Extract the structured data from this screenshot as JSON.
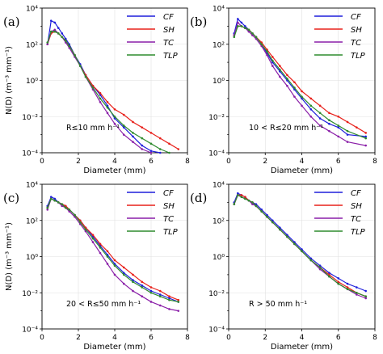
{
  "chart_data": [
    {
      "type": "line",
      "panel_label": "(a)",
      "annotation": "R≤10 mm h⁻¹",
      "xlabel": "Diameter (mm)",
      "ylabel": "N(D) (m⁻³ mm⁻¹)",
      "xlim": [
        0,
        8
      ],
      "xticks": [
        0,
        2,
        4,
        6,
        8
      ],
      "ylim_log10": [
        -4,
        4
      ],
      "yticks": [
        "10⁻⁴",
        "10⁻²",
        "10⁰",
        "10²",
        "10⁴"
      ],
      "yscale": "log",
      "grid": true,
      "legend": "top-right",
      "series": [
        {
          "name": "CF",
          "color": "#1f1fdc",
          "x": [
            0.3,
            0.5,
            0.7,
            0.9,
            1.1,
            1.3,
            1.5,
            1.8,
            2.1,
            2.4,
            2.8,
            3.2,
            3.6,
            4.0,
            4.5,
            5.0,
            5.5,
            6.0,
            6.5
          ],
          "y": [
            2.0,
            3.3,
            3.2,
            2.9,
            2.6,
            2.3,
            2.0,
            1.4,
            0.9,
            0.3,
            -0.3,
            -0.8,
            -1.4,
            -2.1,
            -2.6,
            -3.1,
            -3.6,
            -3.9,
            -4.0
          ]
        },
        {
          "name": "SH",
          "color": "#e8201a",
          "x": [
            0.3,
            0.5,
            0.7,
            0.9,
            1.1,
            1.3,
            1.5,
            1.8,
            2.1,
            2.4,
            2.8,
            3.2,
            3.6,
            4.0,
            4.5,
            5.0,
            5.5,
            6.0,
            6.5,
            7.0,
            7.5
          ],
          "y": [
            2.0,
            2.6,
            2.7,
            2.6,
            2.4,
            2.2,
            1.9,
            1.4,
            0.8,
            0.3,
            -0.3,
            -0.7,
            -1.2,
            -1.6,
            -1.9,
            -2.3,
            -2.6,
            -2.9,
            -3.2,
            -3.5,
            -3.8
          ]
        },
        {
          "name": "TC",
          "color": "#8a1fa8",
          "x": [
            0.3,
            0.5,
            0.7,
            0.9,
            1.1,
            1.3,
            1.5,
            1.8,
            2.1,
            2.4,
            2.8,
            3.2,
            3.6,
            4.0,
            4.5,
            5.0,
            5.5,
            6.0
          ],
          "y": [
            2.0,
            2.7,
            2.8,
            2.6,
            2.4,
            2.1,
            1.8,
            1.3,
            0.8,
            0.2,
            -0.5,
            -1.2,
            -1.8,
            -2.4,
            -3.0,
            -3.4,
            -3.8,
            -4.0
          ]
        },
        {
          "name": "TLP",
          "color": "#2e8b2e",
          "x": [
            0.3,
            0.5,
            0.7,
            0.9,
            1.1,
            1.3,
            1.5,
            1.8,
            2.1,
            2.4,
            2.8,
            3.2,
            3.6,
            4.0,
            4.5,
            5.0,
            5.5,
            6.0,
            6.5,
            7.0
          ],
          "y": [
            2.1,
            2.7,
            2.7,
            2.6,
            2.4,
            2.2,
            1.9,
            1.4,
            0.8,
            0.2,
            -0.4,
            -1.0,
            -1.5,
            -2.0,
            -2.5,
            -2.9,
            -3.2,
            -3.5,
            -3.8,
            -4.0
          ]
        }
      ]
    },
    {
      "type": "line",
      "panel_label": "(b)",
      "annotation": "10 < R≤20 mm h⁻¹",
      "xlabel": "Diameter (mm)",
      "ylabel": "",
      "xlim": [
        0,
        8
      ],
      "xticks": [
        0,
        2,
        4,
        6,
        8
      ],
      "ylim_log10": [
        -4,
        4
      ],
      "yticks": [
        "10⁻⁴",
        "10⁻²",
        "10⁰",
        "10²",
        "10⁴"
      ],
      "yscale": "log",
      "grid": true,
      "legend": "top-right",
      "series": [
        {
          "name": "CF",
          "color": "#1f1fdc",
          "x": [
            0.3,
            0.5,
            0.7,
            0.9,
            1.1,
            1.3,
            1.5,
            1.8,
            2.1,
            2.4,
            2.8,
            3.2,
            3.6,
            4.0,
            4.5,
            5.0,
            5.5,
            6.0,
            6.5,
            7.5
          ],
          "y": [
            2.6,
            3.4,
            3.2,
            3.0,
            2.8,
            2.6,
            2.4,
            2.0,
            1.5,
            1.0,
            0.5,
            0.0,
            -0.5,
            -1.0,
            -1.6,
            -2.1,
            -2.4,
            -2.6,
            -3.0,
            -3.1
          ]
        },
        {
          "name": "SH",
          "color": "#e8201a",
          "x": [
            0.3,
            0.5,
            0.7,
            0.9,
            1.1,
            1.3,
            1.5,
            1.8,
            2.1,
            2.4,
            2.8,
            3.2,
            3.6,
            4.0,
            4.5,
            5.0,
            5.5,
            6.0,
            6.5,
            7.0,
            7.5
          ],
          "y": [
            2.5,
            3.0,
            3.0,
            2.9,
            2.8,
            2.6,
            2.4,
            2.1,
            1.7,
            1.3,
            0.8,
            0.3,
            -0.1,
            -0.6,
            -1.0,
            -1.4,
            -1.8,
            -2.0,
            -2.3,
            -2.6,
            -2.9
          ]
        },
        {
          "name": "TC",
          "color": "#8a1fa8",
          "x": [
            0.3,
            0.5,
            0.7,
            0.9,
            1.1,
            1.3,
            1.5,
            1.8,
            2.1,
            2.4,
            2.8,
            3.2,
            3.6,
            4.0,
            4.5,
            5.0,
            5.5,
            6.0,
            6.5,
            7.5
          ],
          "y": [
            2.5,
            3.2,
            3.0,
            2.9,
            2.7,
            2.5,
            2.3,
            1.9,
            1.4,
            0.8,
            0.2,
            -0.3,
            -0.9,
            -1.4,
            -2.0,
            -2.5,
            -2.8,
            -3.1,
            -3.4,
            -3.6
          ]
        },
        {
          "name": "TLP",
          "color": "#2e8b2e",
          "x": [
            0.3,
            0.5,
            0.7,
            0.9,
            1.1,
            1.3,
            1.5,
            1.8,
            2.1,
            2.4,
            2.8,
            3.2,
            3.6,
            4.0,
            4.5,
            5.0,
            5.5,
            6.0,
            6.5,
            7.5
          ],
          "y": [
            2.4,
            3.0,
            3.0,
            2.9,
            2.8,
            2.6,
            2.4,
            2.0,
            1.6,
            1.1,
            0.6,
            0.1,
            -0.4,
            -0.9,
            -1.4,
            -1.8,
            -2.2,
            -2.5,
            -2.8,
            -3.2
          ]
        }
      ]
    },
    {
      "type": "line",
      "panel_label": "(c)",
      "annotation": "20 < R≤50 mm h⁻¹",
      "xlabel": "Diameter (mm)",
      "ylabel": "N(D) (m⁻³ mm⁻¹)",
      "xlim": [
        0,
        8
      ],
      "xticks": [
        0,
        2,
        4,
        6,
        8
      ],
      "ylim_log10": [
        -4,
        4
      ],
      "yticks": [
        "10⁻⁴",
        "10⁻²",
        "10⁰",
        "10²",
        "10⁴"
      ],
      "yscale": "log",
      "grid": true,
      "legend": "top-right",
      "series": [
        {
          "name": "CF",
          "color": "#1f1fdc",
          "x": [
            0.3,
            0.5,
            0.7,
            0.9,
            1.1,
            1.3,
            1.5,
            1.8,
            2.1,
            2.4,
            2.8,
            3.2,
            3.6,
            4.0,
            4.5,
            5.0,
            5.5,
            6.0,
            6.5,
            7.0,
            7.5
          ],
          "y": [
            2.8,
            3.3,
            3.2,
            3.0,
            2.9,
            2.8,
            2.6,
            2.3,
            2.0,
            1.6,
            1.1,
            0.6,
            0.1,
            -0.4,
            -0.9,
            -1.3,
            -1.6,
            -1.9,
            -2.1,
            -2.3,
            -2.5
          ]
        },
        {
          "name": "SH",
          "color": "#e8201a",
          "x": [
            0.3,
            0.5,
            0.7,
            0.9,
            1.1,
            1.3,
            1.5,
            1.8,
            2.1,
            2.4,
            2.8,
            3.2,
            3.6,
            4.0,
            4.5,
            5.0,
            5.5,
            6.0,
            6.5,
            7.0,
            7.5
          ],
          "y": [
            2.7,
            3.2,
            3.1,
            3.0,
            2.9,
            2.8,
            2.6,
            2.3,
            2.0,
            1.6,
            1.2,
            0.7,
            0.3,
            -0.2,
            -0.6,
            -1.0,
            -1.4,
            -1.7,
            -1.9,
            -2.2,
            -2.4
          ]
        },
        {
          "name": "TC",
          "color": "#8a1fa8",
          "x": [
            0.3,
            0.5,
            0.7,
            0.9,
            1.1,
            1.3,
            1.5,
            1.8,
            2.1,
            2.4,
            2.8,
            3.2,
            3.6,
            4.0,
            4.5,
            5.0,
            5.5,
            6.0,
            6.5,
            7.0,
            7.5
          ],
          "y": [
            2.6,
            3.2,
            3.1,
            3.0,
            2.8,
            2.7,
            2.5,
            2.2,
            1.8,
            1.4,
            0.8,
            0.2,
            -0.4,
            -1.0,
            -1.5,
            -1.9,
            -2.2,
            -2.5,
            -2.7,
            -2.9,
            -3.0
          ]
        },
        {
          "name": "TLP",
          "color": "#2e8b2e",
          "x": [
            0.3,
            0.5,
            0.7,
            0.9,
            1.1,
            1.3,
            1.5,
            1.8,
            2.1,
            2.4,
            2.8,
            3.2,
            3.6,
            4.0,
            4.5,
            5.0,
            5.5,
            6.0,
            6.5,
            7.0,
            7.5
          ],
          "y": [
            2.7,
            3.2,
            3.1,
            3.0,
            2.9,
            2.7,
            2.6,
            2.3,
            1.9,
            1.5,
            1.0,
            0.5,
            0.0,
            -0.5,
            -1.0,
            -1.4,
            -1.7,
            -2.0,
            -2.2,
            -2.4,
            -2.5
          ]
        }
      ]
    },
    {
      "type": "line",
      "panel_label": "(d)",
      "annotation": "R > 50 mm h⁻¹",
      "xlabel": "Diameter (mm)",
      "ylabel": "",
      "xlim": [
        0,
        8
      ],
      "xticks": [
        0,
        2,
        4,
        6,
        8
      ],
      "ylim_log10": [
        -4,
        4
      ],
      "yticks": [
        "10⁻⁴",
        "10⁻²",
        "10⁰",
        "10²",
        "10⁴"
      ],
      "yscale": "log",
      "grid": true,
      "legend": "top-right",
      "series": [
        {
          "name": "CF",
          "color": "#1f1fdc",
          "x": [
            0.3,
            0.5,
            0.7,
            0.9,
            1.1,
            1.3,
            1.5,
            1.8,
            2.1,
            2.4,
            2.8,
            3.2,
            3.6,
            4.0,
            4.5,
            5.0,
            5.5,
            6.0,
            6.5,
            7.0,
            7.5
          ],
          "y": [
            3.0,
            3.5,
            3.4,
            3.3,
            3.1,
            3.0,
            2.9,
            2.6,
            2.3,
            2.0,
            1.6,
            1.2,
            0.8,
            0.4,
            -0.1,
            -0.5,
            -0.9,
            -1.2,
            -1.5,
            -1.7,
            -1.9
          ]
        },
        {
          "name": "SH",
          "color": "#e8201a",
          "x": [
            0.3,
            0.5,
            0.7,
            0.9,
            1.1,
            1.3,
            1.5,
            1.8,
            2.1,
            2.4,
            2.8,
            3.2,
            3.6,
            4.0,
            4.5,
            5.0,
            5.5,
            6.0,
            6.5,
            7.0,
            7.5
          ],
          "y": [
            2.9,
            3.4,
            3.4,
            3.3,
            3.1,
            3.0,
            2.8,
            2.5,
            2.2,
            1.9,
            1.5,
            1.1,
            0.7,
            0.3,
            -0.2,
            -0.6,
            -1.0,
            -1.4,
            -1.7,
            -2.0,
            -2.2
          ]
        },
        {
          "name": "TC",
          "color": "#8a1fa8",
          "x": [
            0.3,
            0.5,
            0.7,
            0.9,
            1.1,
            1.3,
            1.5,
            1.8,
            2.1,
            2.4,
            2.8,
            3.2,
            3.6,
            4.0,
            4.5,
            5.0,
            5.5,
            6.0,
            6.5,
            7.0,
            7.5
          ],
          "y": [
            2.9,
            3.4,
            3.3,
            3.2,
            3.1,
            2.9,
            2.8,
            2.5,
            2.2,
            1.9,
            1.5,
            1.1,
            0.7,
            0.3,
            -0.2,
            -0.7,
            -1.1,
            -1.5,
            -1.8,
            -2.1,
            -2.3
          ]
        },
        {
          "name": "TLP",
          "color": "#2e8b2e",
          "x": [
            0.3,
            0.5,
            0.7,
            0.9,
            1.1,
            1.3,
            1.5,
            1.8,
            2.1,
            2.4,
            2.8,
            3.2,
            3.6,
            4.0,
            4.5,
            5.0,
            5.5,
            6.0,
            6.5,
            7.0,
            7.5
          ],
          "y": [
            2.9,
            3.4,
            3.3,
            3.2,
            3.1,
            3.0,
            2.8,
            2.5,
            2.2,
            1.9,
            1.5,
            1.1,
            0.7,
            0.3,
            -0.2,
            -0.6,
            -1.1,
            -1.5,
            -1.8,
            -2.0,
            -2.2
          ]
        }
      ]
    }
  ]
}
